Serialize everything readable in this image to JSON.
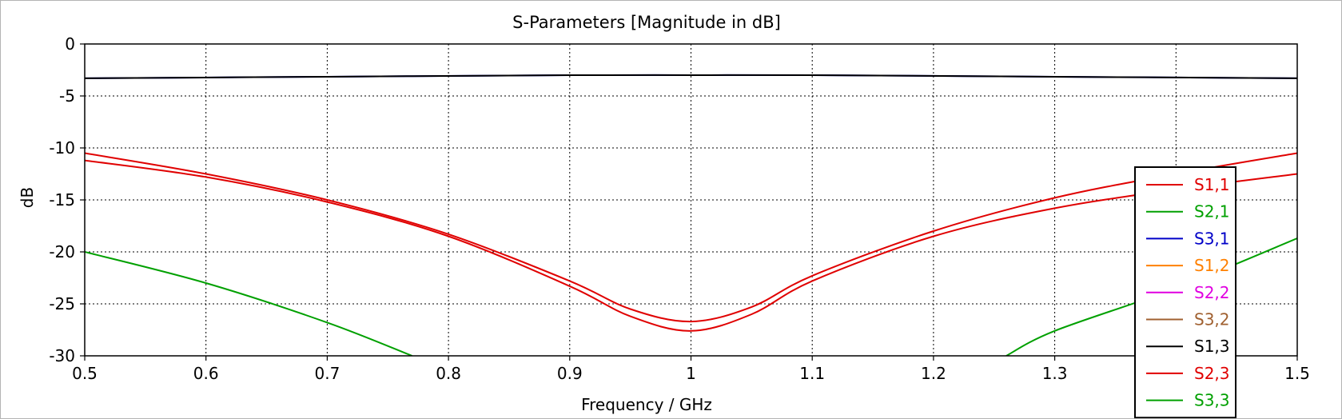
{
  "chart_data": {
    "type": "line",
    "title": "S-Parameters [Magnitude in dB]",
    "xlabel": "Frequency / GHz",
    "ylabel": "dB",
    "xlim": [
      0.5,
      1.5
    ],
    "ylim": [
      -30,
      0
    ],
    "xticks": [
      0.5,
      0.6,
      0.7,
      0.8,
      0.9,
      1,
      1.1,
      1.2,
      1.3,
      1.4,
      1.5
    ],
    "xtick_labels": [
      "0.5",
      "0.6",
      "0.7",
      "0.8",
      "0.9",
      "1",
      "1.1",
      "1.2",
      "1.3",
      "1.4",
      "1.5"
    ],
    "yticks": [
      0,
      -5,
      -10,
      -15,
      -20,
      -25,
      -30
    ],
    "ytick_labels": [
      "0",
      "-5",
      "-10",
      "-15",
      "-20",
      "-25",
      "-30"
    ],
    "grid": true,
    "legend_position": "bottom-right",
    "series": [
      {
        "name": "S1,1",
        "color": "#e00000",
        "x": [
          0.5,
          0.6,
          0.7,
          0.8,
          0.9,
          0.95,
          1.0,
          1.05,
          1.1,
          1.2,
          1.3,
          1.4,
          1.5
        ],
        "y": [
          -10.5,
          -12.5,
          -15.0,
          -18.3,
          -22.8,
          -25.5,
          -26.7,
          -25.3,
          -22.3,
          -18.0,
          -14.8,
          -12.5,
          -10.5
        ]
      },
      {
        "name": "S2,1",
        "color": "#00a000",
        "x": [
          0.5,
          0.6,
          0.7,
          0.77
        ],
        "y": [
          -20.0,
          -23.0,
          -26.8,
          -30.0
        ]
      },
      {
        "name": "S3,1",
        "color": "#0000c8",
        "x": [
          0.5,
          0.7,
          0.9,
          1.0,
          1.1,
          1.3,
          1.5
        ],
        "y": [
          -3.3,
          -3.15,
          -3.0,
          -3.0,
          -3.0,
          -3.15,
          -3.3
        ]
      },
      {
        "name": "S1,2",
        "color": "#ff8000",
        "x": [],
        "y": []
      },
      {
        "name": "S2,2",
        "color": "#e000e0",
        "x": [],
        "y": []
      },
      {
        "name": "S3,2",
        "color": "#a06030",
        "x": [],
        "y": []
      },
      {
        "name": "S1,3",
        "color": "#000000",
        "x": [
          0.5,
          0.7,
          0.9,
          1.0,
          1.1,
          1.3,
          1.5
        ],
        "y": [
          -3.3,
          -3.15,
          -3.0,
          -3.0,
          -3.0,
          -3.15,
          -3.3
        ]
      },
      {
        "name": "S2,3",
        "color": "#e00000",
        "x": [
          0.5,
          0.6,
          0.7,
          0.8,
          0.9,
          0.95,
          1.0,
          1.05,
          1.1,
          1.2,
          1.3,
          1.4,
          1.5
        ],
        "y": [
          -11.2,
          -12.8,
          -15.2,
          -18.5,
          -23.3,
          -26.2,
          -27.6,
          -26.0,
          -22.8,
          -18.5,
          -15.8,
          -14.0,
          -12.5
        ]
      },
      {
        "name": "S3,3",
        "color": "#00a000",
        "x": [
          1.26,
          1.3,
          1.4,
          1.5
        ],
        "y": [
          -30.0,
          -27.6,
          -23.5,
          -18.7
        ]
      }
    ]
  }
}
